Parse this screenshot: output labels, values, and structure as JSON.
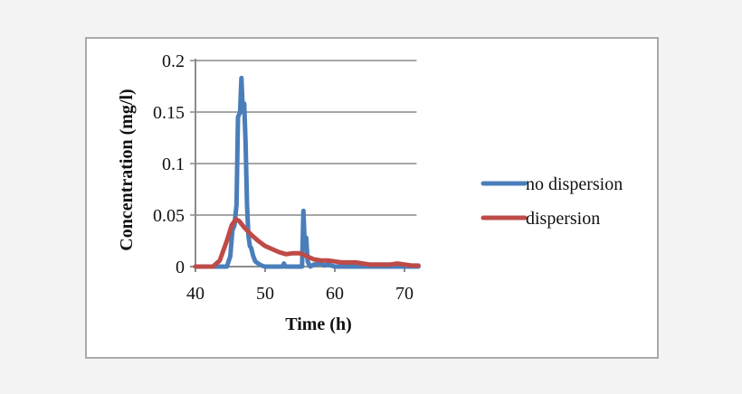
{
  "chart_data": {
    "type": "line",
    "title": "",
    "xlabel": "Time (h)",
    "ylabel": "Concentration (mg/l)",
    "xlim": [
      40,
      72
    ],
    "ylim": [
      0,
      0.2
    ],
    "xticks": [
      "40",
      "50",
      "60",
      "70"
    ],
    "yticks": [
      "0",
      "0.05",
      "0.1",
      "0.15",
      "0.2"
    ],
    "grid": "horizontal",
    "legend_position": "right",
    "series": [
      {
        "name": "no dispersion",
        "color": "#4a7ebb",
        "x": [
          40,
          44.5,
          45.0,
          45.3,
          45.6,
          45.9,
          46.1,
          46.4,
          46.6,
          46.8,
          47.0,
          47.2,
          47.4,
          47.6,
          47.8,
          48.0,
          48.3,
          48.6,
          49.0,
          49.5,
          50,
          52.5,
          52.7,
          52.9,
          55.3,
          55.5,
          55.7,
          55.9,
          56.1,
          56.3,
          56.5,
          57,
          58,
          58.5,
          59,
          60,
          72
        ],
        "y": [
          0,
          0,
          0.01,
          0.035,
          0.04,
          0.06,
          0.145,
          0.15,
          0.183,
          0.15,
          0.158,
          0.12,
          0.06,
          0.03,
          0.02,
          0.018,
          0.01,
          0.005,
          0.003,
          0.001,
          0,
          0,
          0.003,
          0,
          0,
          0.054,
          0.02,
          0.028,
          0.005,
          0.002,
          0,
          0.002,
          0.003,
          0.001,
          0.002,
          0,
          0
        ]
      },
      {
        "name": "dispersion",
        "color": "#be4b48",
        "x": [
          40,
          42.5,
          43.5,
          44.5,
          45.2,
          45.8,
          46.3,
          47,
          48,
          49,
          50,
          51,
          52,
          53,
          54,
          55,
          56,
          57,
          58,
          59,
          60,
          61,
          62,
          63,
          64,
          65,
          66,
          67,
          68,
          69,
          70,
          71,
          72
        ],
        "y": [
          0,
          0,
          0.006,
          0.025,
          0.04,
          0.046,
          0.044,
          0.038,
          0.031,
          0.025,
          0.02,
          0.017,
          0.014,
          0.012,
          0.013,
          0.013,
          0.01,
          0.007,
          0.006,
          0.006,
          0.005,
          0.004,
          0.004,
          0.004,
          0.003,
          0.002,
          0.002,
          0.002,
          0.002,
          0.003,
          0.002,
          0.001,
          0.001
        ]
      }
    ]
  },
  "legend": {
    "items": [
      {
        "label": "no dispersion",
        "color": "#4a7ebb"
      },
      {
        "label": "dispersion",
        "color": "#be4b48"
      }
    ]
  },
  "style": {
    "gridline_color": "#a6a6a6",
    "axis_color": "#8c8c8c"
  }
}
